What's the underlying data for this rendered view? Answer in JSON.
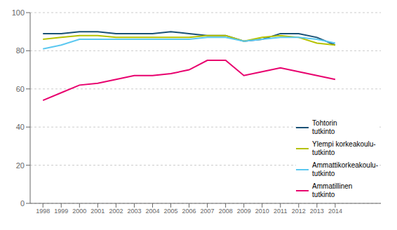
{
  "chart_data": {
    "type": "line",
    "x": [
      1998,
      1999,
      2000,
      2001,
      2002,
      2003,
      2004,
      2005,
      2006,
      2007,
      2008,
      2009,
      2010,
      2011,
      2012,
      2013,
      2014
    ],
    "series": [
      {
        "name": "Tohtorin\ntutkinto",
        "color": "#1a5276",
        "values": [
          89,
          89,
          90,
          90,
          89,
          89,
          89,
          90,
          89,
          88,
          88,
          85,
          86,
          89,
          89,
          87,
          83
        ]
      },
      {
        "name": "Ylempi korkeakoulu-\ntutkinto",
        "color": "#b5c200",
        "values": [
          86,
          87,
          88,
          88,
          87,
          87,
          87,
          87,
          87,
          88,
          88,
          85,
          87,
          88,
          87,
          84,
          83
        ]
      },
      {
        "name": "Ammattikorkeakoulu-\ntutkinto",
        "color": "#5bc8f0",
        "values": [
          81,
          83,
          86,
          86,
          86,
          86,
          86,
          86,
          86,
          87,
          87,
          85,
          86,
          87,
          87,
          86,
          84
        ]
      },
      {
        "name": "Ammatillinen\ntutkinto",
        "color": "#e8006e",
        "values": [
          54,
          58,
          62,
          63,
          65,
          67,
          67,
          68,
          70,
          75,
          75,
          67,
          69,
          71,
          69,
          67,
          65
        ]
      }
    ],
    "xlim": [
      1997.3,
      2016.5
    ],
    "xticks": [
      1998,
      1999,
      2000,
      2001,
      2002,
      2003,
      2004,
      2005,
      2006,
      2007,
      2008,
      2009,
      2010,
      2011,
      2012,
      2013,
      2014
    ],
    "ylim": [
      0,
      100
    ],
    "yticks": [
      0,
      20,
      40,
      60,
      80,
      100
    ],
    "grid": true,
    "legend": "lower right"
  }
}
